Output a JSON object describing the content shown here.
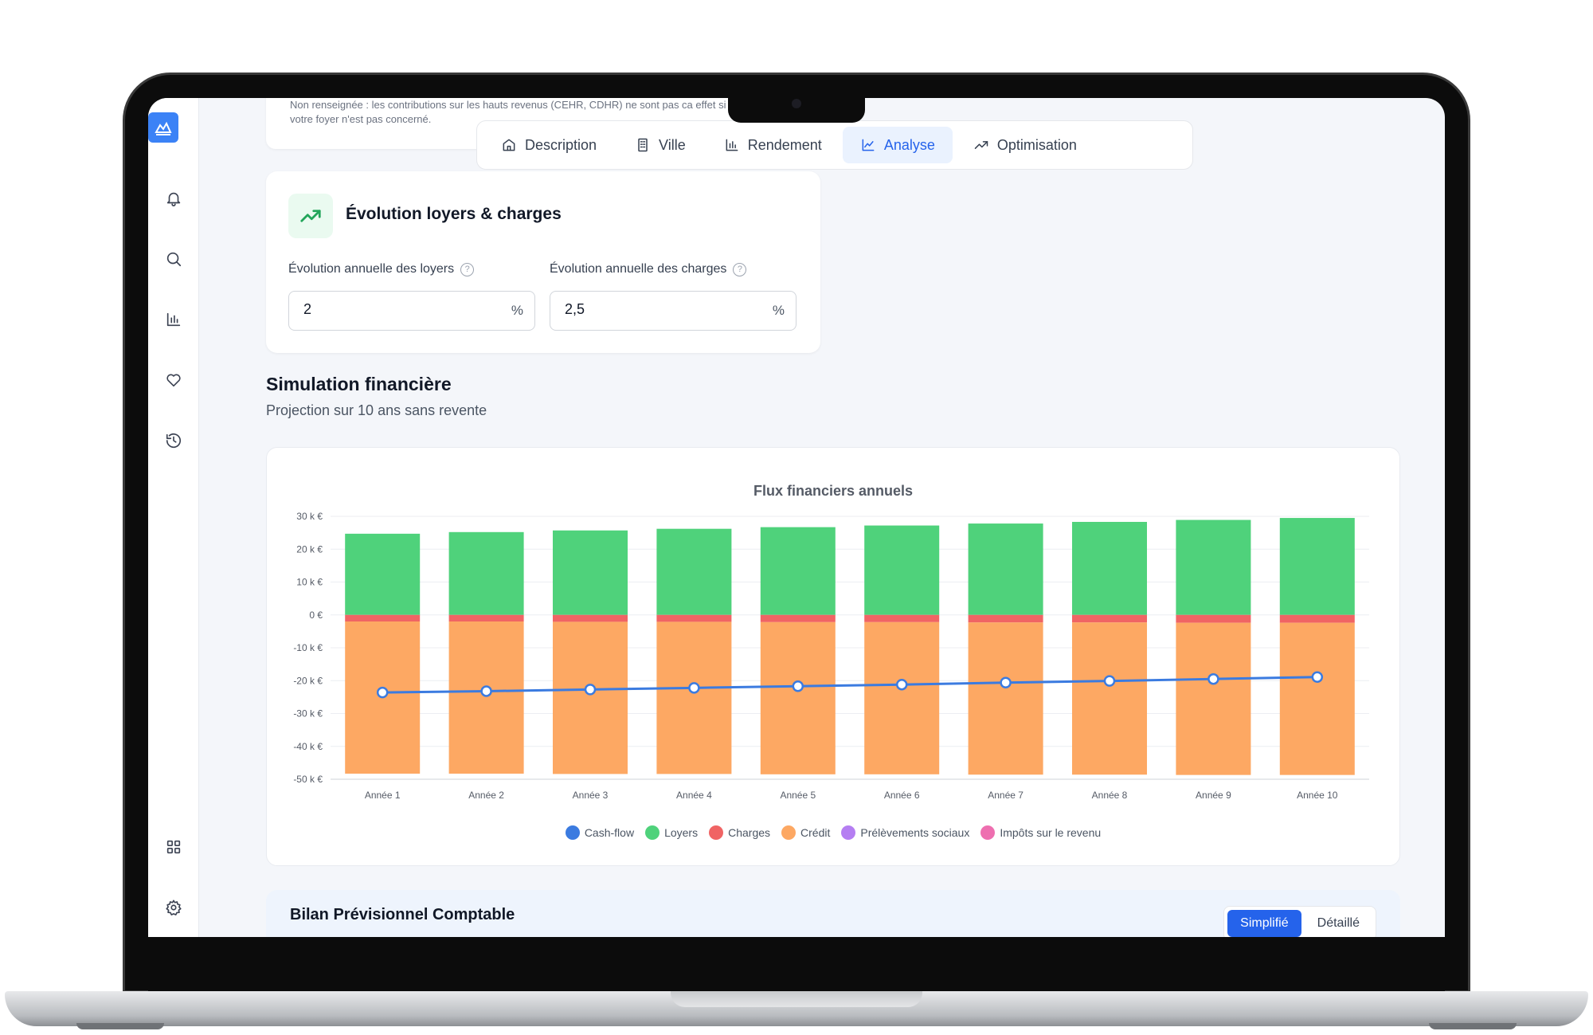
{
  "top_note": "Non renseignée : les contributions sur les hauts revenus (CEHR, CDHR) ne sont pas ca effet si votre foyer n'est pas concerné.",
  "tabs": [
    {
      "label": "Description",
      "icon": "home-icon"
    },
    {
      "label": "Ville",
      "icon": "building-icon"
    },
    {
      "label": "Rendement",
      "icon": "bar-chart-icon"
    },
    {
      "label": "Analyse",
      "icon": "line-chart-icon",
      "active": true
    },
    {
      "label": "Optimisation",
      "icon": "trending-up-icon"
    }
  ],
  "evolution": {
    "title": "Évolution loyers & charges",
    "loyers_label": "Évolution annuelle des loyers",
    "loyers_value": "2",
    "charges_label": "Évolution annuelle des charges",
    "charges_value": "2,5",
    "unit": "%"
  },
  "simulation": {
    "title": "Simulation financière",
    "subtitle": "Projection sur 10 ans sans revente"
  },
  "bilan": {
    "title": "Bilan Prévisionnel Comptable",
    "simplifie": "Simplifié",
    "detaille": "Détaillé"
  },
  "colors": {
    "accent": "#2563eb",
    "cashflow": "#3b7be0",
    "loyers": "#4fd27b",
    "charges": "#f06464",
    "credit": "#fda863",
    "prelevements": "#b57ef2",
    "impots": "#ee6fb0"
  },
  "chart_data": {
    "type": "bar",
    "title": "Flux financiers annuels",
    "categories": [
      "Année 1",
      "Année 2",
      "Année 3",
      "Année 4",
      "Année 5",
      "Année 6",
      "Année 7",
      "Année 8",
      "Année 9",
      "Année 10"
    ],
    "y_ticks": [
      "30 k €",
      "20 k €",
      "10 k €",
      "0 €",
      "-10 k €",
      "-20 k €",
      "-30 k €",
      "-40 k €",
      "-50 k €"
    ],
    "ylim": [
      -50000,
      30000
    ],
    "series": [
      {
        "name": "Cash-flow",
        "kind": "line",
        "values": [
          -23600,
          -23200,
          -22700,
          -22200,
          -21700,
          -21200,
          -20600,
          -20100,
          -19500,
          -18900
        ]
      },
      {
        "name": "Loyers",
        "kind": "bar",
        "values": [
          24700,
          25200,
          25700,
          26200,
          26700,
          27200,
          27800,
          28300,
          28900,
          29500
        ]
      },
      {
        "name": "Charges",
        "kind": "bar",
        "values": [
          -2000,
          -2000,
          -2100,
          -2100,
          -2200,
          -2200,
          -2300,
          -2300,
          -2400,
          -2400
        ]
      },
      {
        "name": "Crédit",
        "kind": "bar",
        "values": [
          -46300,
          -46300,
          -46300,
          -46300,
          -46300,
          -46300,
          -46300,
          -46300,
          -46300,
          -46300
        ]
      },
      {
        "name": "Prélèvements sociaux",
        "kind": "bar",
        "values": [
          0,
          0,
          0,
          0,
          0,
          0,
          0,
          0,
          0,
          0
        ]
      },
      {
        "name": "Impôts sur le revenu",
        "kind": "bar",
        "values": [
          0,
          0,
          0,
          0,
          0,
          0,
          0,
          0,
          0,
          0
        ]
      }
    ],
    "grid": true,
    "legend_position": "bottom"
  }
}
